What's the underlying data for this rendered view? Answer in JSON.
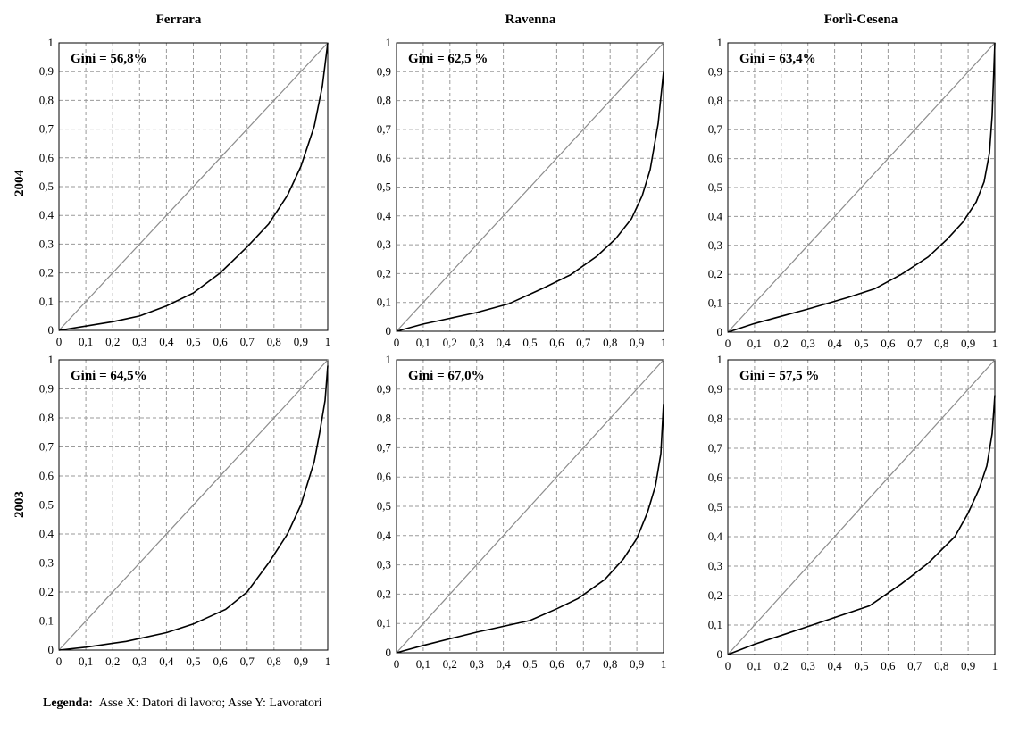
{
  "columns": [
    "Ferrara",
    "Ravenna",
    "Forlì-Cesena"
  ],
  "rows": [
    "2004",
    "2003"
  ],
  "legend": {
    "label": "Legenda:",
    "text": "Asse X: Datori di lavoro; Asse Y: Lavoratori"
  },
  "chart_data": [
    {
      "type": "line",
      "column": "Ferrara",
      "row": "2004",
      "annotation": "Gini = 56,8%",
      "xlim": [
        0,
        1
      ],
      "ylim": [
        0,
        1
      ],
      "grid": true,
      "x_ticks": [
        "0",
        "0,1",
        "0,2",
        "0,3",
        "0,4",
        "0,5",
        "0,6",
        "0,7",
        "0,8",
        "0,9",
        "1"
      ],
      "y_ticks": [
        "0",
        "0,1",
        "0,2",
        "0,3",
        "0,4",
        "0,5",
        "0,6",
        "0,7",
        "0,8",
        "0,9",
        "1"
      ],
      "series": [
        {
          "x": [
            0,
            1
          ],
          "y": [
            0,
            1
          ]
        },
        {
          "x": [
            0,
            0.1,
            0.2,
            0.3,
            0.4,
            0.5,
            0.6,
            0.7,
            0.78,
            0.85,
            0.9,
            0.95,
            0.98,
            1.0
          ],
          "y": [
            0,
            0.015,
            0.03,
            0.05,
            0.085,
            0.13,
            0.2,
            0.29,
            0.37,
            0.47,
            0.57,
            0.71,
            0.85,
            1.0
          ]
        }
      ]
    },
    {
      "type": "line",
      "column": "Ravenna",
      "row": "2004",
      "annotation": "Gini = 62,5 %",
      "xlim": [
        0,
        1
      ],
      "ylim": [
        0,
        1
      ],
      "grid": true,
      "x_ticks": [
        "0",
        "0,1",
        "0,2",
        "0,3",
        "0,4",
        "0,5",
        "0,6",
        "0,7",
        "0,8",
        "0,9",
        "1"
      ],
      "y_ticks": [
        "0",
        "0,1",
        "0,2",
        "0,3",
        "0,4",
        "0,5",
        "0,6",
        "0,7",
        "0,8",
        "0,9",
        "1"
      ],
      "series": [
        {
          "x": [
            0,
            1
          ],
          "y": [
            0,
            1
          ]
        },
        {
          "x": [
            0,
            0.1,
            0.2,
            0.3,
            0.42,
            0.55,
            0.65,
            0.75,
            0.82,
            0.88,
            0.92,
            0.95,
            0.98,
            1.0
          ],
          "y": [
            0,
            0.025,
            0.045,
            0.065,
            0.095,
            0.15,
            0.195,
            0.26,
            0.32,
            0.39,
            0.47,
            0.56,
            0.72,
            0.9
          ]
        }
      ]
    },
    {
      "type": "line",
      "column": "Forlì-Cesena",
      "row": "2004",
      "annotation": "Gini = 63,4%",
      "xlim": [
        0,
        1
      ],
      "ylim": [
        0,
        1
      ],
      "grid": true,
      "x_ticks": [
        "0",
        "0,1",
        "0,2",
        "0,3",
        "0,4",
        "0,5",
        "0,6",
        "0,7",
        "0,8",
        "0,9",
        "1"
      ],
      "y_ticks": [
        "0",
        "0,1",
        "0,2",
        "0,3",
        "0,4",
        "0,5",
        "0,6",
        "0,7",
        "0,8",
        "0,9",
        "1"
      ],
      "series": [
        {
          "x": [
            0,
            1
          ],
          "y": [
            0,
            1
          ]
        },
        {
          "x": [
            0,
            0.1,
            0.2,
            0.3,
            0.45,
            0.55,
            0.65,
            0.75,
            0.82,
            0.88,
            0.93,
            0.96,
            0.98,
            0.99,
            1.0
          ],
          "y": [
            0,
            0.03,
            0.055,
            0.08,
            0.12,
            0.15,
            0.2,
            0.26,
            0.32,
            0.38,
            0.45,
            0.52,
            0.62,
            0.75,
            1.0
          ]
        }
      ]
    },
    {
      "type": "line",
      "column": "Ferrara",
      "row": "2003",
      "annotation": "Gini = 64,5%",
      "xlim": [
        0,
        1
      ],
      "ylim": [
        0,
        1
      ],
      "grid": true,
      "x_ticks": [
        "0",
        "0,1",
        "0,2",
        "0,3",
        "0,4",
        "0,5",
        "0,6",
        "0,7",
        "0,8",
        "0,9",
        "1"
      ],
      "y_ticks": [
        "0",
        "0,1",
        "0,2",
        "0,3",
        "0,4",
        "0,5",
        "0,6",
        "0,7",
        "0,8",
        "0,9",
        "1"
      ],
      "series": [
        {
          "x": [
            0,
            1
          ],
          "y": [
            0,
            1
          ]
        },
        {
          "x": [
            0,
            0.1,
            0.25,
            0.4,
            0.5,
            0.62,
            0.7,
            0.78,
            0.85,
            0.9,
            0.95,
            0.97,
            0.99,
            1.0
          ],
          "y": [
            0,
            0.01,
            0.03,
            0.06,
            0.09,
            0.14,
            0.2,
            0.3,
            0.4,
            0.5,
            0.65,
            0.75,
            0.86,
            0.98
          ]
        }
      ]
    },
    {
      "type": "line",
      "column": "Ravenna",
      "row": "2003",
      "annotation": "Gini = 67,0%",
      "xlim": [
        0,
        1
      ],
      "ylim": [
        0,
        1
      ],
      "grid": true,
      "x_ticks": [
        "0",
        "0,1",
        "0,2",
        "0,3",
        "0,4",
        "0,5",
        "0,6",
        "0,7",
        "0,8",
        "0,9",
        "1"
      ],
      "y_ticks": [
        "0",
        "0,1",
        "0,2",
        "0,3",
        "0,4",
        "0,5",
        "0,6",
        "0,7",
        "0,8",
        "0,9",
        "1"
      ],
      "series": [
        {
          "x": [
            0,
            1
          ],
          "y": [
            0,
            1
          ]
        },
        {
          "x": [
            0,
            0.1,
            0.3,
            0.5,
            0.6,
            0.68,
            0.78,
            0.85,
            0.9,
            0.94,
            0.97,
            0.99,
            1.0
          ],
          "y": [
            0,
            0.025,
            0.07,
            0.11,
            0.15,
            0.185,
            0.25,
            0.32,
            0.39,
            0.48,
            0.57,
            0.68,
            0.85
          ]
        }
      ]
    },
    {
      "type": "line",
      "column": "Forlì-Cesena",
      "row": "2003",
      "annotation": "Gini = 57,5 %",
      "xlim": [
        0,
        1
      ],
      "ylim": [
        0,
        1
      ],
      "grid": true,
      "x_ticks": [
        "0",
        "0,1",
        "0,2",
        "0,3",
        "0,4",
        "0,5",
        "0,6",
        "0,7",
        "0,8",
        "0,9",
        "1"
      ],
      "y_ticks": [
        "0",
        "0,1",
        "0,2",
        "0,3",
        "0,4",
        "0,5",
        "0,6",
        "0,7",
        "0,8",
        "0,9",
        "1"
      ],
      "series": [
        {
          "x": [
            0,
            1
          ],
          "y": [
            0,
            1
          ]
        },
        {
          "x": [
            0,
            0.1,
            0.3,
            0.53,
            0.65,
            0.75,
            0.85,
            0.9,
            0.94,
            0.97,
            0.99,
            1.0
          ],
          "y": [
            0,
            0.035,
            0.095,
            0.165,
            0.24,
            0.31,
            0.4,
            0.48,
            0.56,
            0.64,
            0.75,
            0.88
          ]
        }
      ]
    }
  ]
}
